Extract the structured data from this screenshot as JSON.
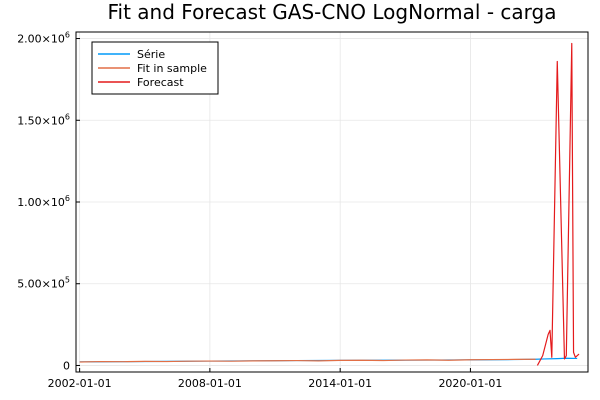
{
  "chart_data": {
    "type": "line",
    "title": "Fit and Forecast GAS-CNO LogNormal - carga",
    "xlabel": "",
    "ylabel": "",
    "x_axis": {
      "type": "date",
      "range": [
        "2001-11-01",
        "2025-06-01"
      ],
      "ticks": [
        "2002-01-01",
        "2008-01-01",
        "2014-01-01",
        "2020-01-01"
      ]
    },
    "y_axis": {
      "range": [
        -40000,
        2040000
      ],
      "ticks": [
        {
          "value": 0,
          "mantissa": "0",
          "exponent": ""
        },
        {
          "value": 500000,
          "mantissa": "5.00×10",
          "exponent": "5"
        },
        {
          "value": 1000000,
          "mantissa": "1.00×10",
          "exponent": "6"
        },
        {
          "value": 1500000,
          "mantissa": "1.50×10",
          "exponent": "6"
        },
        {
          "value": 2000000,
          "mantissa": "2.00×10",
          "exponent": "6"
        }
      ]
    },
    "grid": true,
    "legend": {
      "placement": "top-left",
      "framed": true
    },
    "series": [
      {
        "name": "Série",
        "color": "#009af9",
        "x": [
          "2002-01-01",
          "2004-01-01",
          "2006-01-01",
          "2008-01-01",
          "2010-01-01",
          "2012-01-01",
          "2014-01-01",
          "2016-01-01",
          "2018-01-01",
          "2020-01-01",
          "2022-01-01",
          "2023-01-01",
          "2023-06-01",
          "2024-01-01",
          "2024-06-01",
          "2024-12-01"
        ],
        "y": [
          22000,
          23000,
          25000,
          27000,
          28000,
          30000,
          31000,
          32000,
          33000,
          34000,
          36000,
          38000,
          40000,
          42000,
          44000,
          43000
        ]
      },
      {
        "name": "Fit in sample",
        "color": "#e26f46",
        "x": [
          "2002-01-01",
          "2003-01-01",
          "2004-01-01",
          "2005-01-01",
          "2006-01-01",
          "2007-01-01",
          "2008-01-01",
          "2009-01-01",
          "2010-01-01",
          "2011-01-01",
          "2012-01-01",
          "2013-01-01",
          "2014-01-01",
          "2015-01-01",
          "2016-01-01",
          "2017-01-01",
          "2018-01-01",
          "2019-01-01",
          "2020-01-01",
          "2021-01-01",
          "2022-01-01",
          "2023-01-01"
        ],
        "y": [
          21000,
          24000,
          23000,
          25000,
          24000,
          26000,
          27000,
          26000,
          28000,
          29000,
          30000,
          28000,
          31000,
          32000,
          30000,
          33000,
          34000,
          32000,
          35000,
          36000,
          37000,
          38000
        ]
      },
      {
        "name": "Forecast",
        "color": "#e41a1c",
        "x": [
          "2023-02-01",
          "2023-05-01",
          "2023-08-01",
          "2023-09-01",
          "2023-10-01",
          "2024-01-01",
          "2024-05-01",
          "2024-06-01",
          "2024-09-01",
          "2024-10-01",
          "2024-11-01",
          "2024-12-01",
          "2025-01-01"
        ],
        "y": [
          0,
          60000,
          190000,
          215000,
          50000,
          1860000,
          40000,
          60000,
          1970000,
          80000,
          50000,
          60000,
          70000
        ]
      }
    ]
  }
}
